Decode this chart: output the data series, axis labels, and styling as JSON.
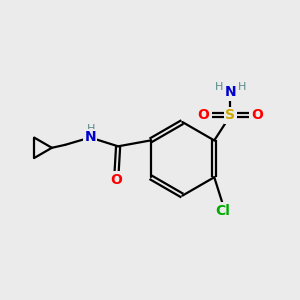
{
  "bg_color": "#ebebeb",
  "bond_color": "#000000",
  "atom_colors": {
    "O": "#ff0000",
    "N": "#0000cd",
    "S": "#ccaa00",
    "Cl": "#00aa00",
    "H": "#5a8a8a",
    "C": "#000000"
  },
  "font_size": 9.5,
  "lw": 1.6,
  "off": 0.07
}
